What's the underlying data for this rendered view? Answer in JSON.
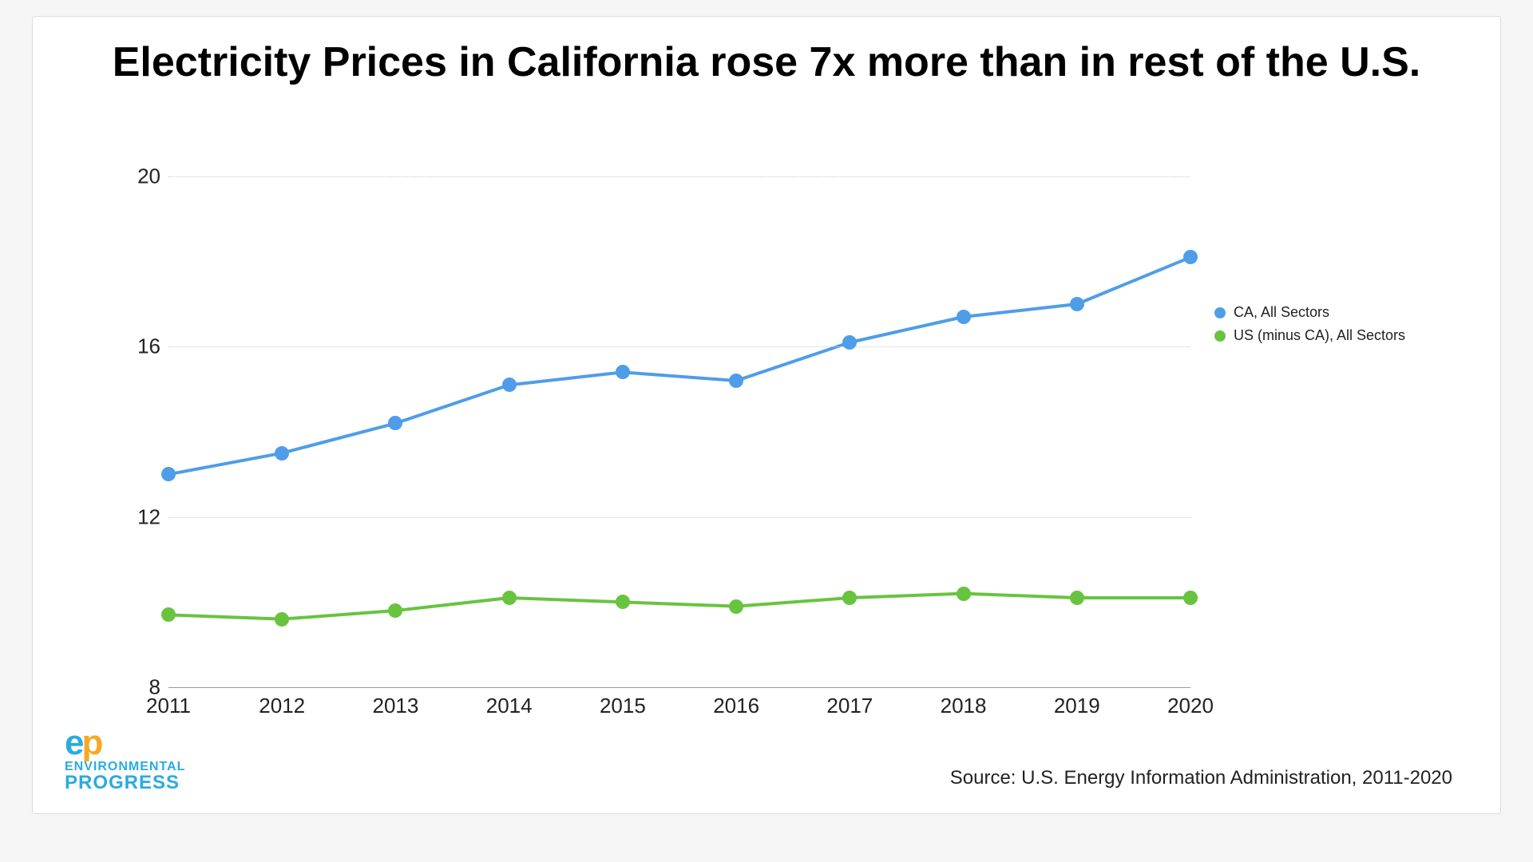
{
  "chart": {
    "type": "line",
    "title": "Electricity Prices in California rose 7x more than in rest of the U.S.",
    "title_fontsize": 52,
    "title_fontweight": 800,
    "title_color": "#000000",
    "background_color": "#ffffff",
    "card_border_color": "#dcdcdc",
    "grid_color": "#cfcfcf",
    "baseline_color": "#9a9a9a",
    "tick_font_color": "#222222",
    "tick_fontsize": 26,
    "x_categories": [
      "2011",
      "2012",
      "2013",
      "2014",
      "2015",
      "2016",
      "2017",
      "2018",
      "2019",
      "2020"
    ],
    "ylim": [
      8,
      20
    ],
    "yticks": [
      8,
      12,
      16,
      20
    ],
    "line_width": 4,
    "marker_radius": 9,
    "series": [
      {
        "name": "CA, All Sectors",
        "color": "#4f9de8",
        "values": [
          13.0,
          13.5,
          14.2,
          15.1,
          15.4,
          15.2,
          16.1,
          16.7,
          17.0,
          18.1
        ]
      },
      {
        "name": "US (minus CA), All Sectors",
        "color": "#68c43f",
        "values": [
          9.7,
          9.6,
          9.8,
          10.1,
          10.0,
          9.9,
          10.1,
          10.2,
          10.1,
          10.1
        ]
      }
    ],
    "legend": {
      "fontsize": 18,
      "text_color": "#222222",
      "dot_radius": 7
    },
    "source_text": "Source: U.S. Energy Information Administration, 2011-2020",
    "source_fontsize": 24,
    "source_color": "#222222"
  },
  "logo": {
    "ep_text_e": "e",
    "ep_text_p": "p",
    "ep_fontsize": 44,
    "color_e": "#29abe2",
    "color_p": "#f7a823",
    "line1": "ENVIRONMENTAL",
    "line2": "PROGRESS",
    "word_fontsize_small": 16,
    "word_fontsize_large": 24,
    "word_color": "#29abe2"
  }
}
